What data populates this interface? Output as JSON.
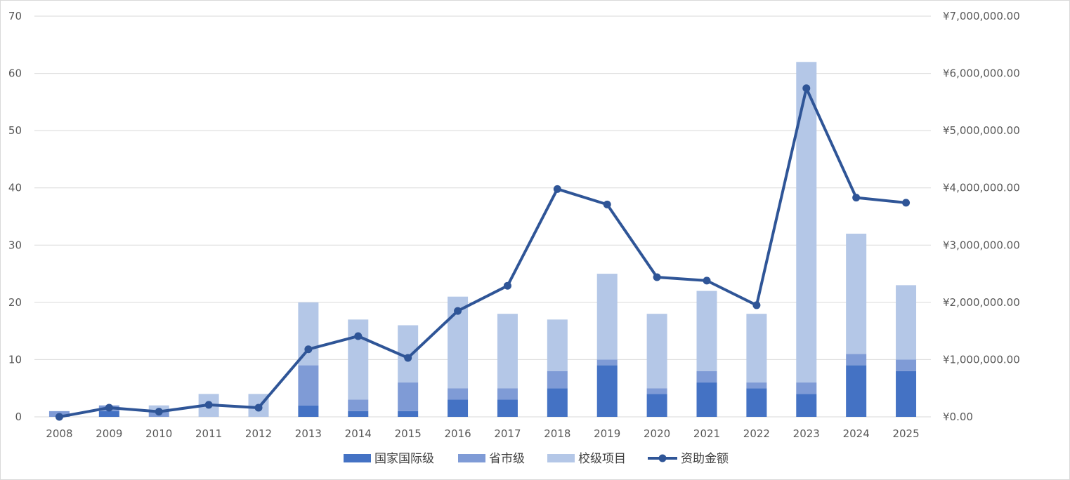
{
  "chart_data": {
    "type": "bar",
    "stacked": true,
    "categories": [
      "2008",
      "2009",
      "2010",
      "2011",
      "2012",
      "2013",
      "2014",
      "2015",
      "2016",
      "2017",
      "2018",
      "2019",
      "2020",
      "2021",
      "2022",
      "2023",
      "2024",
      "2025"
    ],
    "series": [
      {
        "name": "国家国际级",
        "kind": "bar",
        "color": "#4472c4",
        "values": [
          0,
          1,
          0,
          0,
          0,
          2,
          1,
          1,
          3,
          3,
          5,
          9,
          4,
          6,
          5,
          4,
          9,
          8
        ]
      },
      {
        "name": "省市级",
        "kind": "bar",
        "color": "#7f9bd6",
        "values": [
          1,
          1,
          1,
          0,
          0,
          7,
          2,
          5,
          2,
          2,
          3,
          1,
          1,
          2,
          1,
          2,
          2,
          2
        ]
      },
      {
        "name": "校级项目",
        "kind": "bar",
        "color": "#b4c7e7",
        "values": [
          0,
          0,
          1,
          4,
          4,
          11,
          14,
          10,
          16,
          13,
          9,
          15,
          13,
          14,
          12,
          56,
          21,
          13
        ]
      },
      {
        "name": "资助金额",
        "kind": "line",
        "axis": "right",
        "color": "#2f5597",
        "values": [
          0,
          160000,
          90000,
          210000,
          160000,
          1180000,
          1410000,
          1030000,
          1850000,
          2290000,
          3980000,
          3710000,
          2440000,
          2380000,
          1950000,
          5740000,
          3830000,
          3740000
        ]
      }
    ],
    "left_axis": {
      "min": 0,
      "max": 70,
      "step": 10,
      "tick_labels": [
        "0",
        "10",
        "20",
        "30",
        "40",
        "50",
        "60",
        "70"
      ]
    },
    "right_axis": {
      "min": 0,
      "max": 7000000,
      "step": 1000000,
      "tick_labels": [
        "¥0.00",
        "¥1,000,000.00",
        "¥2,000,000.00",
        "¥3,000,000.00",
        "¥4,000,000.00",
        "¥5,000,000.00",
        "¥6,000,000.00",
        "¥7,000,000.00"
      ]
    },
    "grid": true,
    "legend_position": "bottom",
    "gridline_color": "#d9d9d9",
    "tick_color": "#595959"
  }
}
